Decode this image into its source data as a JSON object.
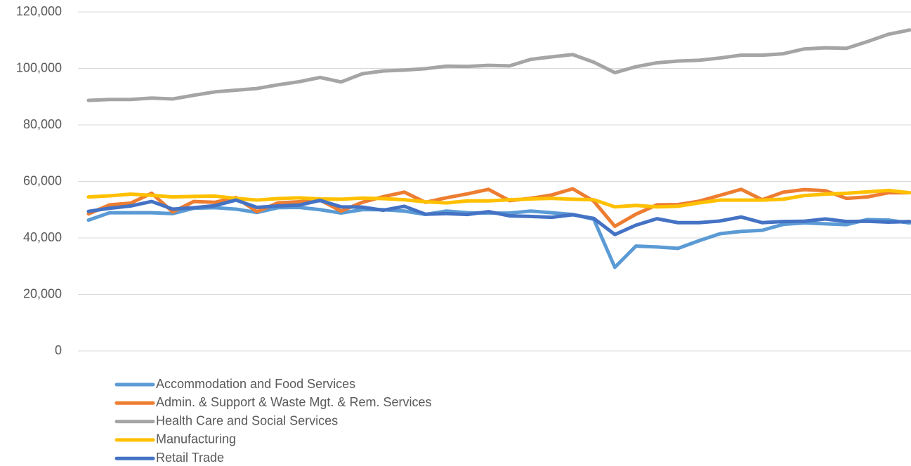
{
  "chart_data": {
    "type": "line",
    "categories": [
      null,
      null,
      null,
      null,
      null,
      null,
      null,
      null,
      null,
      null,
      null,
      null,
      null,
      null,
      null,
      null,
      null,
      null,
      null,
      null,
      null,
      null,
      null,
      null,
      null,
      null,
      null,
      null,
      null,
      null,
      null,
      null,
      null,
      null,
      null,
      null,
      null,
      null,
      null,
      null
    ],
    "series": [
      {
        "name": "Accommodation and Food Services",
        "color": "#5b9bd5",
        "values": [
          46300,
          48900,
          48900,
          48900,
          48600,
          50500,
          50700,
          50200,
          49000,
          50700,
          50800,
          50000,
          48800,
          50000,
          50000,
          49500,
          48300,
          49500,
          48900,
          48800,
          48800,
          49500,
          48900,
          48300,
          46600,
          29600,
          37100,
          36800,
          36300,
          39000,
          41500,
          42300,
          42700,
          44800,
          45300,
          45000,
          44700,
          46500,
          46300,
          45300
        ]
      },
      {
        "name": "Admin. & Support & Waste Mgt. & Rem. Services",
        "color": "#ed7d31",
        "values": [
          48500,
          51700,
          52300,
          55800,
          49200,
          52900,
          52600,
          54300,
          49300,
          52400,
          52800,
          53400,
          49500,
          52600,
          54600,
          56200,
          52600,
          54200,
          55600,
          57200,
          53200,
          54000,
          55200,
          57400,
          53000,
          44100,
          48400,
          51700,
          51800,
          53000,
          55100,
          57200,
          53500,
          56200,
          57100,
          56700,
          54000,
          54500,
          56000,
          56000
        ]
      },
      {
        "name": "Health Care and Social Services",
        "color": "#a5a5a5",
        "values": [
          88700,
          89000,
          89000,
          89500,
          89200,
          90500,
          91700,
          92300,
          92900,
          94200,
          95300,
          96800,
          95200,
          98100,
          99100,
          99400,
          99900,
          100800,
          100700,
          101100,
          100900,
          103200,
          104100,
          104900,
          102200,
          98500,
          100600,
          102000,
          102600,
          102900,
          103700,
          104700,
          104700,
          105200,
          106900,
          107300,
          107100,
          109500,
          112100,
          113600
        ]
      },
      {
        "name": "Manufacturing",
        "color": "#ffc000",
        "values": [
          54500,
          54900,
          55500,
          55100,
          54500,
          54700,
          54800,
          54000,
          53400,
          53900,
          54200,
          53800,
          53700,
          54100,
          53900,
          53500,
          52800,
          52400,
          53100,
          53100,
          53500,
          53800,
          54000,
          53700,
          53500,
          51000,
          51500,
          51000,
          51200,
          52400,
          53400,
          53400,
          53400,
          53700,
          55000,
          55500,
          55800,
          56300,
          56800,
          56000
        ]
      },
      {
        "name": "Retail Trade",
        "color": "#4472c4",
        "values": [
          49400,
          50500,
          51300,
          52900,
          50200,
          50700,
          51400,
          53400,
          50800,
          51300,
          51600,
          53300,
          51000,
          50900,
          49800,
          51200,
          48400,
          48600,
          48300,
          49300,
          47800,
          47600,
          47300,
          48200,
          46900,
          41200,
          44500,
          46800,
          45400,
          45400,
          46000,
          47400,
          45400,
          45800,
          45900,
          46700,
          45800,
          45900,
          45600,
          45800
        ]
      }
    ],
    "ylim": [
      0,
      120000
    ],
    "yticks": [
      0,
      {
        "value": 20000,
        "label": "20,000"
      },
      {
        "value": 40000,
        "label": "40,000"
      },
      {
        "value": 60000,
        "label": "60,000"
      },
      {
        "value": 80000,
        "label": "80,000"
      },
      {
        "value": 100000,
        "label": "100,000"
      },
      {
        "value": 120000,
        "label": "120,000"
      }
    ],
    "grid": true,
    "legend": "bottom"
  }
}
